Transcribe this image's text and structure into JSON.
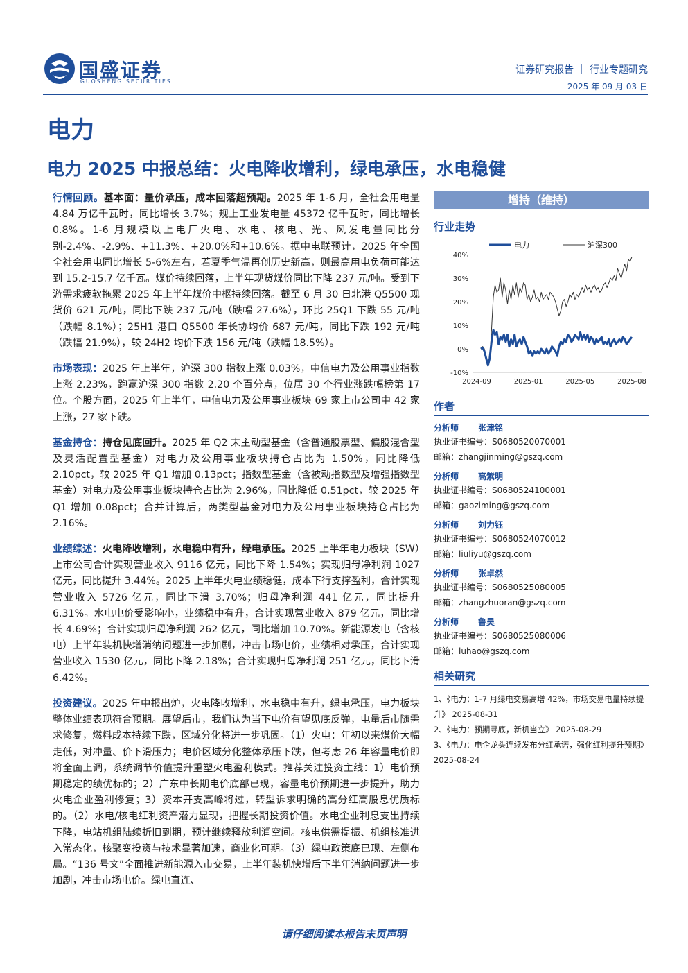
{
  "header": {
    "logo_name": "国盛证券",
    "logo_en": "GUOSHENG SECURITIES",
    "report_type": "证券研究报告 ｜ 行业专题研究",
    "date": "2025 年 09 月 03 日"
  },
  "industry": "电力",
  "title": "电力 2025 中报总结：火电降收增利，绿电承压，水电稳健",
  "paragraphs": [
    {
      "key": "行情回顾。",
      "sub": "基本面：量价承压，成本回落超预期。",
      "text": "2025 年 1-6 月，全社会用电量 4.84 万亿千瓦时，同比增长 3.7%；规上工业发电量 45372 亿千瓦时，同比增长 0.8%。1-6 月规模以上电厂火电、水电、核电、光、风发电量同比分别-2.4%、-2.9%、+11.3%、+20.0%和+10.6%。据中电联预计，2025 年全国全社会用电同比增长 5-6%左右，若夏季气温再创历史新高，则最高用电负荷可能达到 15.2-15.7 亿千瓦。煤价持续回落，上半年现货煤价同比下降 237 元/吨。受到下游需求疲软拖累 2025 年上半年煤价中枢持续回落。截至 6 月 30 日北港 Q5500 现货价 621 元/吨，同比下跌 237 元/吨（跌幅 27.6%），环比 25Q1 下跌 55 元/吨（跌幅 8.1%）；25H1 港口 Q5500 年长协均价 687 元/吨，同比下跌 192 元/吨（跌幅 21.9%），较 24H2 均价下跌 156 元/吨（跌幅 18.5%）。"
    },
    {
      "key": "市场表现：",
      "sub": "",
      "text": "2025 年上半年，沪深 300 指数上涨 0.03%，中信电力及公用事业指数上涨 2.23%，跑赢沪深 300 指数 2.20 个百分点，位居 30 个行业涨跌幅榜第 17 位。个股方面，2025 年上半年，中信电力及公用事业板块 69 家上市公司中 42 家上涨，27 家下跌。"
    },
    {
      "key": "基金持仓：",
      "sub": "持仓见底回升。",
      "text": "2025 年 Q2 末主动型基金（含普通股票型、偏股混合型及灵活配置型基金）对电力及公用事业板块持仓占比为 1.50%，同比降低 2.10pct，较 2025 年 Q1 增加 0.13pct；指数型基金（含被动指数型及增强指数型基金）对电力及公用事业板块持仓占比为 2.96%，同比降低 0.51pct，较 2025 年 Q1 增加 0.08pct；合并计算后，两类型基金对电力及公用事业板块持仓占比为 2.16%。"
    },
    {
      "key": "业绩综述：",
      "sub": "火电降收增利，水电稳中有升，绿电承压。",
      "text": "2025 上半年电力板块（SW）上市公司合计实现营业收入 9116 亿元，同比下降 1.54%；实现归母净利润 1027 亿元，同比提升 3.44%。2025 上半年火电业绩稳健，成本下行支撑盈利，合计实现营业收入 5726 亿元，同比下滑 3.70%；归母净利润 441 亿元，同比提升 6.31%。水电电价受影响小，业绩稳中有升，合计实现营业收入 879 亿元，同比增长 4.69%；合计实现归母净利润 262 亿元，同比增加 10.70%。新能源发电（含核电）上半年装机快增消纳问题进一步加剧，冲击市场电价，业绩相对承压，合计实现营业收入 1530 亿元，同比下降 2.18%；合计实现归母净利润 251 亿元，同比下滑 6.42%。"
    },
    {
      "key": "投资建议。",
      "sub": "",
      "text": "2025 年中报出炉，火电降收增利，水电稳中有升，绿电承压，电力板块整体业绩表现符合预期。展望后市，我们认为当下电价有望见底反弹，电量后市随需求修复，燃料成本持续下跌，区域分化将进一步巩固。（1）火电：年初以来煤价大幅走低，对冲量、价下滑压力；电价区域分化整体承压下跌，但考虑 26 年容量电价即将全面上调，系统调节价值提升重塑火电盈利模式。推荐关注投资主线：1）电价预期稳定的绩优标的；2）广东中长期电价底部已现，容量电价预期进一步提升，助力火电企业盈利修复；3）资本开支高峰将过，转型诉求明确的高分红高股息优质标的。（2）水电/核电红利资产潜力显现，把握长期投资价值。水电企业利息支出持续下降，电站机组陆续折旧到期，预计继续释放利润空间。核电供需提振、机组核准进入常态化，核聚变投资与技术显著加速，商业化可期。（3）绿电政策底已现、左侧布局。“136 号文”全面推进新能源入市交易，上半年装机快增后下半年消纳问题进一步加剧，冲击市场电价。绿电直连、"
    }
  ],
  "rating": "增持（维持）",
  "trend_title": "行业走势",
  "chart_data": {
    "type": "line",
    "title": "",
    "x_ticks": [
      "2024-09",
      "2025-01",
      "2025-05",
      "2025-08"
    ],
    "ylim": [
      -10,
      40
    ],
    "y_ticks": [
      "-10%",
      "0%",
      "10%",
      "20%",
      "30%",
      "40%"
    ],
    "legend_position": "top",
    "series": [
      {
        "name": "电力",
        "color": "#1f4e9a",
        "width": 3,
        "values": [
          0,
          0.5,
          -1,
          -4,
          -7,
          -4,
          3,
          8,
          6,
          7,
          2,
          5,
          4,
          6,
          3,
          6,
          1,
          4,
          2,
          6,
          1,
          3,
          4,
          2,
          5,
          3,
          1,
          -2,
          -1,
          -3,
          -1,
          -2,
          -1,
          -2,
          0,
          -1,
          -2,
          0,
          -2,
          -1,
          1,
          0,
          -1,
          -3,
          1,
          3,
          2,
          4,
          3,
          6,
          5,
          3,
          4,
          6,
          5,
          4,
          7,
          4,
          6,
          4,
          6,
          3,
          5,
          4,
          2,
          4,
          3,
          4,
          5,
          2,
          3,
          2,
          4,
          1,
          3,
          4,
          2,
          3,
          4,
          3,
          5,
          4,
          2,
          3,
          4,
          5
        ]
      },
      {
        "name": "沪深300",
        "color": "#333333",
        "width": 1,
        "values": [
          0,
          1,
          0,
          -3,
          -6,
          -4,
          8,
          22,
          27,
          24,
          25,
          30,
          22,
          28,
          25,
          19,
          25,
          21,
          27,
          23,
          28,
          22,
          26,
          24,
          28,
          27,
          21,
          23,
          20,
          22,
          25,
          21,
          22,
          20,
          24,
          21,
          22,
          23,
          21,
          24,
          23,
          22,
          20,
          17,
          14,
          16,
          20,
          21,
          18,
          20,
          23,
          22,
          24,
          21,
          23,
          22,
          24,
          26,
          24,
          27,
          25,
          26,
          24,
          26,
          27,
          25,
          26,
          24,
          25,
          27,
          28,
          26,
          28,
          30,
          29,
          31,
          29,
          34,
          32,
          30,
          33,
          36,
          33,
          38,
          37,
          39
        ]
      }
    ]
  },
  "authors_title": "作者",
  "authors": [
    {
      "role": "分析师",
      "name": "张津铭",
      "license_label": "执业证书编号：",
      "license": "S0680520070001",
      "email_label": "邮箱：",
      "email": "zhangjinming@gszq.com"
    },
    {
      "role": "分析师",
      "name": "高紫明",
      "license_label": "执业证书编号：",
      "license": "S0680524100001",
      "email_label": "邮箱：",
      "email": "gaoziming@gszq.com"
    },
    {
      "role": "分析师",
      "name": "刘力钰",
      "license_label": "执业证书编号：",
      "license": "S0680524070012",
      "email_label": "邮箱：",
      "email": "liuliyu@gszq.com"
    },
    {
      "role": "分析师",
      "name": "张卓然",
      "license_label": "执业证书编号：",
      "license": "S0680525080005",
      "email_label": "邮箱：",
      "email": "zhangzhuoran@gszq.com"
    },
    {
      "role": "分析师",
      "name": "鲁昊",
      "license_label": "执业证书编号：",
      "license": "S0680525080006",
      "email_label": "邮箱：",
      "email": "luhao@gszq.com"
    }
  ],
  "related_title": "相关研究",
  "related": [
    "1、《电力：1-7 月绿电交易高增 42%，市场交易电量持续提升》 2025-08-31",
    "2、《电力：预期寻底，新机当立》 2025-08-29",
    "3、《电力：电企龙头连续发布分红承诺，强化红利提升预期》 2025-08-24"
  ],
  "footer": "请仔细阅读本报告末页声明"
}
